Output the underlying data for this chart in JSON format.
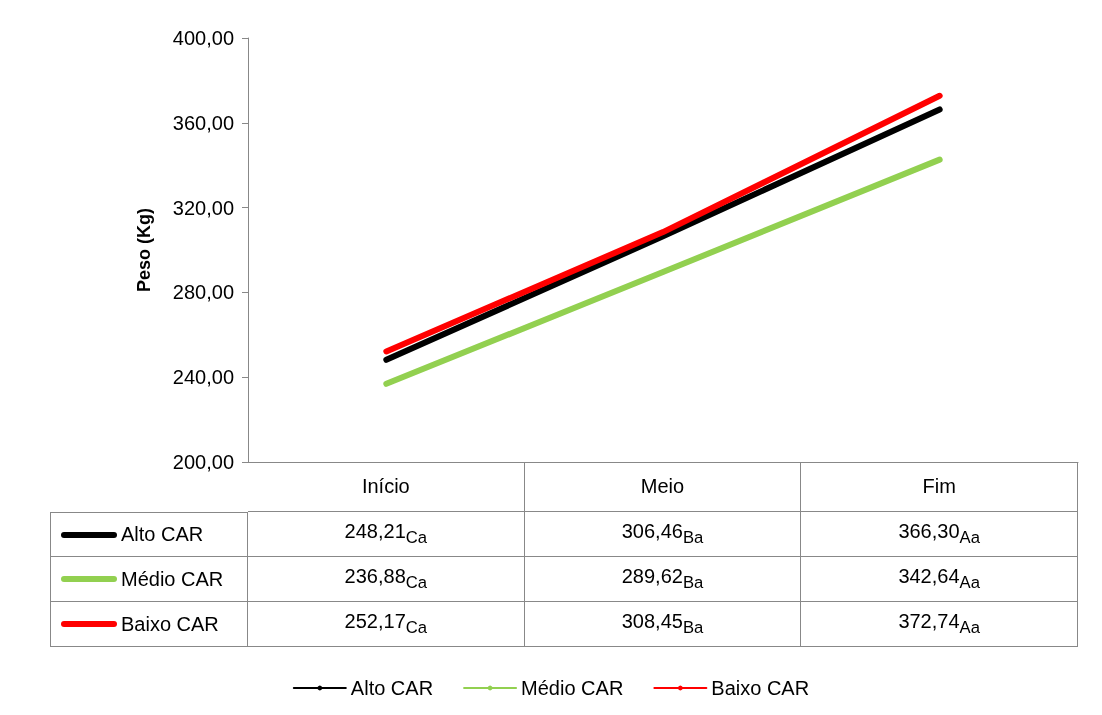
{
  "chart_data": {
    "type": "line",
    "ylabel": "Peso (Kg)",
    "categories": [
      "Início",
      "Meio",
      "Fim"
    ],
    "ylim": [
      200,
      400
    ],
    "yticks": [
      {
        "value": 200,
        "label": "200,00"
      },
      {
        "value": 240,
        "label": "240,00"
      },
      {
        "value": 280,
        "label": "280,00"
      },
      {
        "value": 320,
        "label": "320,00"
      },
      {
        "value": 360,
        "label": "360,00"
      },
      {
        "value": 400,
        "label": "400,00"
      }
    ],
    "series": [
      {
        "name": "Alto CAR",
        "color": "#000000",
        "values": [
          248.21,
          306.46,
          366.3
        ],
        "value_labels": [
          "248,21$_{Ca}$",
          "306,46$_{Ba}$",
          "366,30$_{Aa}$"
        ]
      },
      {
        "name": "Médio CAR",
        "color": "#92d050",
        "values": [
          236.88,
          289.62,
          342.64
        ],
        "value_labels": [
          "236,88$_{Ca}$",
          "289,62$_{Ba}$",
          "342,64$_{Aa}$"
        ]
      },
      {
        "name": "Baixo CAR",
        "color": "#ff0000",
        "values": [
          252.17,
          308.45,
          372.74
        ],
        "value_labels": [
          "252,17$_{Ca}$",
          "308,45$_{Ba}$",
          "372,74$_{Aa}$"
        ]
      }
    ],
    "marker": "none",
    "legend": "bottom"
  }
}
